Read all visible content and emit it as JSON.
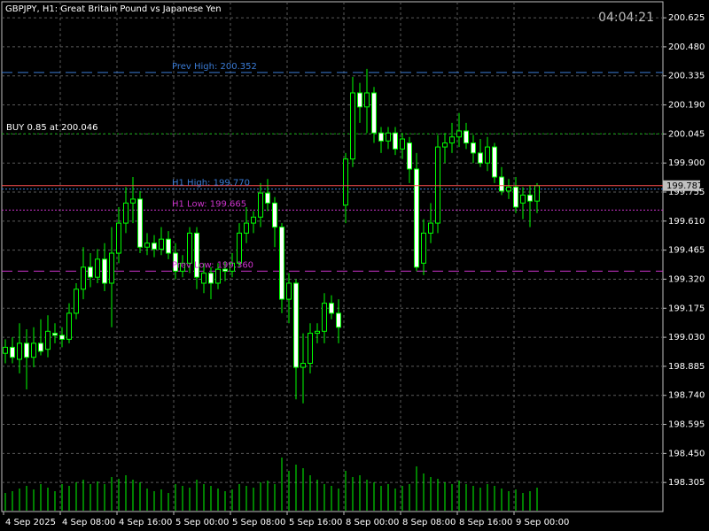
{
  "chart_data": {
    "type": "candlestick",
    "title": "GBPJPY, H1:  Great Britain Pound vs Japanese Yen",
    "clock": "04:04:21",
    "categories": [
      "4 Sep 2025",
      null,
      null,
      null,
      null,
      null,
      null,
      null,
      "4 Sep 08:00",
      null,
      null,
      null,
      null,
      null,
      null,
      null,
      "4 Sep 16:00",
      null,
      null,
      null,
      null,
      null,
      null,
      null,
      "5 Sep 00:00",
      null,
      null,
      null,
      null,
      null,
      null,
      null,
      "5 Sep 08:00",
      null,
      null,
      null,
      null,
      null,
      null,
      null,
      "5 Sep 16:00",
      null,
      null,
      null,
      null,
      null,
      null,
      null,
      "8 Sep 00:00",
      null,
      null,
      null,
      null,
      null,
      null,
      null,
      "8 Sep 08:00",
      null,
      null,
      null,
      null,
      null,
      null,
      null,
      "8 Sep 16:00",
      null,
      null,
      null,
      null,
      null,
      null,
      null,
      "9 Sep 00:00",
      null,
      null,
      null
    ],
    "open": [
      198.95,
      198.98,
      198.92,
      199.0,
      198.93,
      199.0,
      198.97,
      199.05,
      199.04,
      199.02,
      199.15,
      199.27,
      199.38,
      199.33,
      199.42,
      199.3,
      199.45,
      199.6,
      199.7,
      199.72,
      199.48,
      199.5,
      199.47,
      199.52,
      199.45,
      199.36,
      199.4,
      199.55,
      199.3,
      199.35,
      199.3,
      199.37,
      199.36,
      199.4,
      199.55,
      199.6,
      199.63,
      199.75,
      199.7,
      199.58,
      199.22,
      199.3,
      198.88,
      198.9,
      199.05,
      199.06,
      199.2,
      199.15,
      199.69,
      199.92,
      200.25,
      200.18,
      200.25,
      200.05,
      200.01,
      200.05,
      199.97,
      200.0,
      199.87,
      199.4,
      199.55,
      199.6,
      199.98,
      200.0,
      200.03,
      200.06,
      200.0,
      199.95,
      199.9,
      199.98,
      199.83,
      199.76,
      199.78,
      199.7,
      199.74,
      199.71
    ],
    "high": [
      199.02,
      199.03,
      199.1,
      199.07,
      199.08,
      199.12,
      199.14,
      199.1,
      199.08,
      199.2,
      199.3,
      199.48,
      199.45,
      199.47,
      199.5,
      199.58,
      199.68,
      199.78,
      199.83,
      199.76,
      199.55,
      199.54,
      199.58,
      199.56,
      199.5,
      199.44,
      199.58,
      199.58,
      199.4,
      199.38,
      199.4,
      199.41,
      199.45,
      199.6,
      199.68,
      199.66,
      199.8,
      199.82,
      199.73,
      199.6,
      199.35,
      199.32,
      199.05,
      199.1,
      199.1,
      199.25,
      199.24,
      199.22,
      199.95,
      200.33,
      200.3,
      200.37,
      200.28,
      200.08,
      200.08,
      200.08,
      200.05,
      200.03,
      199.95,
      199.62,
      199.7,
      200.04,
      200.05,
      200.1,
      200.15,
      200.1,
      200.04,
      200.02,
      200.03,
      200.0,
      199.88,
      199.82,
      199.83,
      199.78,
      199.79,
      199.8
    ],
    "low": [
      198.9,
      198.9,
      198.85,
      198.77,
      198.88,
      198.94,
      198.93,
      199.0,
      198.98,
      199.0,
      199.12,
      199.22,
      199.28,
      199.3,
      199.26,
      199.08,
      199.4,
      199.55,
      199.6,
      199.45,
      199.44,
      199.43,
      199.44,
      199.42,
      199.32,
      199.33,
      199.35,
      199.27,
      199.25,
      199.22,
      199.27,
      199.31,
      199.33,
      199.38,
      199.5,
      199.55,
      199.58,
      199.66,
      199.48,
      199.15,
      199.1,
      198.72,
      198.7,
      198.85,
      199.0,
      199.0,
      199.12,
      199.0,
      199.6,
      199.88,
      200.1,
      200.05,
      200.0,
      199.95,
      199.97,
      199.94,
      199.92,
      199.8,
      199.36,
      199.34,
      199.5,
      199.55,
      199.9,
      199.95,
      199.98,
      199.97,
      199.9,
      199.88,
      199.86,
      199.8,
      199.74,
      199.72,
      199.65,
      199.62,
      199.58,
      199.65
    ],
    "close": [
      198.98,
      198.93,
      199.0,
      198.93,
      199.0,
      198.96,
      199.06,
      199.04,
      199.02,
      199.15,
      199.27,
      199.38,
      199.33,
      199.42,
      199.3,
      199.45,
      199.6,
      199.7,
      199.72,
      199.48,
      199.5,
      199.47,
      199.52,
      199.45,
      199.36,
      199.4,
      199.55,
      199.33,
      199.35,
      199.3,
      199.37,
      199.36,
      199.4,
      199.55,
      199.6,
      199.63,
      199.75,
      199.7,
      199.58,
      199.22,
      199.3,
      198.88,
      198.9,
      199.05,
      199.06,
      199.2,
      199.15,
      199.08,
      199.92,
      200.25,
      200.18,
      200.25,
      200.05,
      200.01,
      200.05,
      199.97,
      200.02,
      199.87,
      199.38,
      199.55,
      199.6,
      199.98,
      200.0,
      200.03,
      200.06,
      200.0,
      199.95,
      199.9,
      199.98,
      199.83,
      199.76,
      199.78,
      199.68,
      199.74,
      199.71,
      199.787
    ],
    "volume": [
      20,
      22,
      25,
      28,
      24,
      30,
      26,
      22,
      30,
      28,
      32,
      35,
      30,
      33,
      30,
      38,
      36,
      40,
      35,
      32,
      25,
      22,
      24,
      20,
      30,
      28,
      26,
      35,
      30,
      28,
      25,
      22,
      24,
      30,
      28,
      26,
      32,
      34,
      30,
      60,
      45,
      52,
      48,
      40,
      35,
      30,
      28,
      25,
      45,
      38,
      40,
      35,
      32,
      28,
      30,
      25,
      28,
      30,
      50,
      42,
      38,
      36,
      32,
      30,
      34,
      30,
      28,
      26,
      30,
      28,
      25,
      22,
      24,
      20,
      22,
      26
    ],
    "color": "#00ff00",
    "ylim": [
      198.16,
      200.705
    ],
    "yticks": [
      200.625,
      {
        "value": 200.48,
        "label": "200.480"
      },
      200.335,
      {
        "value": 200.19,
        "label": "200.190"
      },
      200.045,
      {
        "value": 199.9,
        "label": "199.900"
      },
      199.755,
      {
        "value": 199.61,
        "label": "199.610"
      },
      199.465,
      {
        "value": 199.32,
        "label": "199.320"
      },
      199.175,
      {
        "value": 199.03,
        "label": "199.030"
      },
      198.885,
      {
        "value": 198.74,
        "label": "198.740"
      },
      198.595,
      {
        "value": 198.45,
        "label": "198.450"
      },
      198.305
    ],
    "grid": true,
    "levels": [
      {
        "label": "Prev High: 200.352",
        "value": 200.352,
        "color": "#3a7bd5",
        "style": "dashed"
      },
      {
        "label": "H1 High: 199.770",
        "value": 199.77,
        "color": "#3a7bd5",
        "style": "dotted"
      },
      {
        "label": "H1 Low: 199.665",
        "value": 199.665,
        "color": "#cc33cc",
        "style": "dotted"
      },
      {
        "label": "Prev Low: 199.360",
        "value": 199.36,
        "color": "#cc33cc",
        "style": "dashed"
      }
    ],
    "order": {
      "label": "BUY 0.85 at 200.046",
      "value": 200.046,
      "color": "#00b000"
    },
    "price": 199.787,
    "price_color": "#ff5050"
  }
}
